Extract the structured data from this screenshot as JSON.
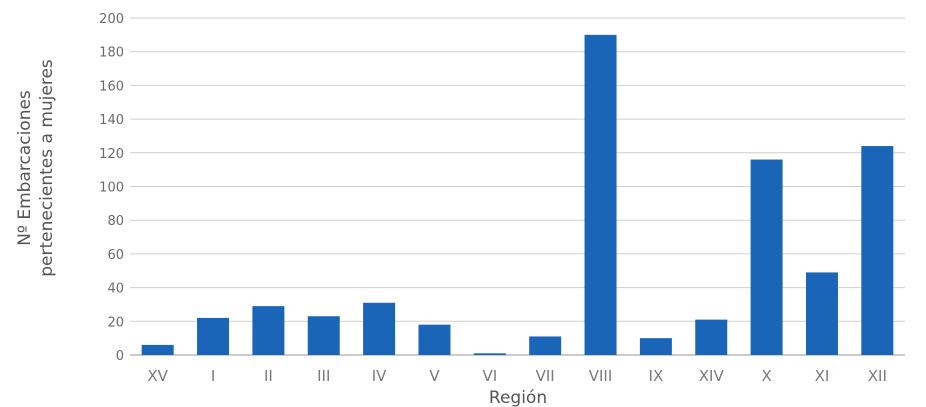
{
  "chart_data": {
    "type": "bar",
    "categories": [
      "XV",
      "I",
      "II",
      "III",
      "IV",
      "V",
      "VI",
      "VII",
      "VIII",
      "IX",
      "XIV",
      "X",
      "XI",
      "XII"
    ],
    "values": [
      6,
      22,
      29,
      23,
      31,
      18,
      1,
      11,
      190,
      10,
      21,
      116,
      49,
      124
    ],
    "xlabel": "Región",
    "ylabel": [
      "Nº Embarcaciones",
      "pertenecientes a mujeres"
    ],
    "ylim": [
      0,
      200
    ],
    "yticks": [
      0,
      20,
      40,
      60,
      80,
      100,
      120,
      140,
      160,
      180,
      200
    ],
    "grid": true,
    "bar_color": "#1b65b8"
  }
}
